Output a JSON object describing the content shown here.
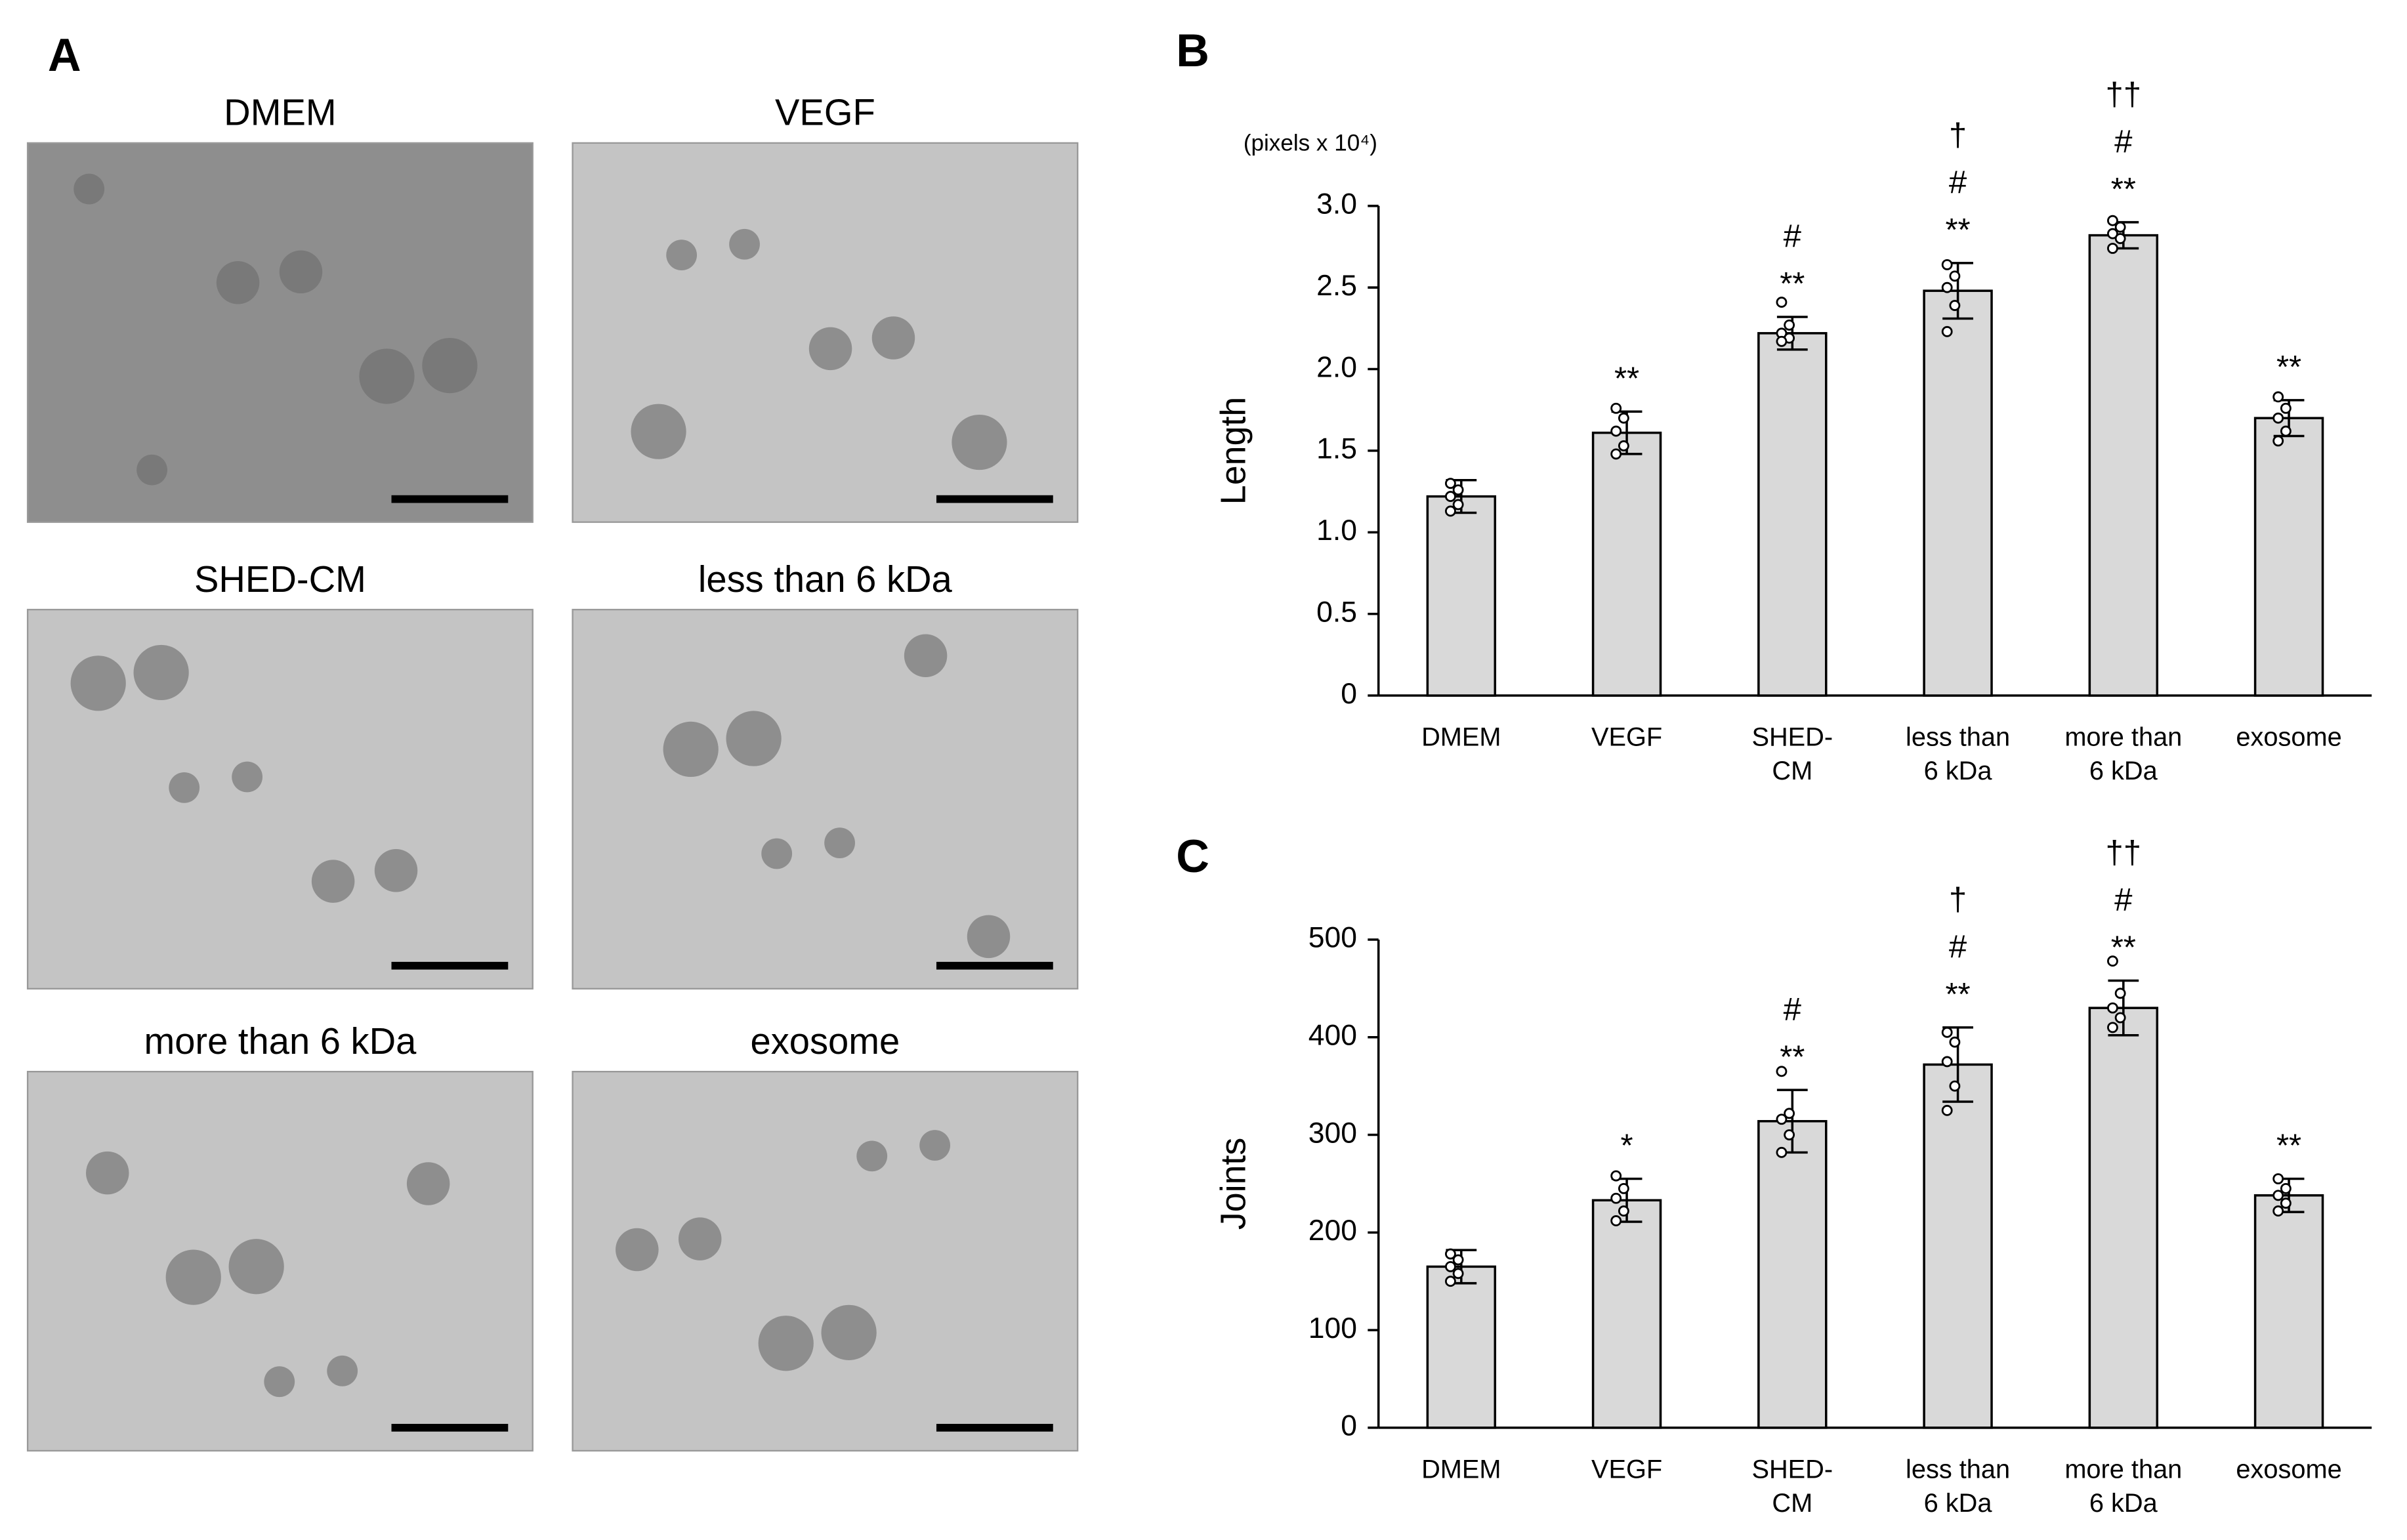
{
  "panel_labels": [
    "A",
    "B",
    "C"
  ],
  "images": [
    {
      "title": "DMEM"
    },
    {
      "title": "VEGF"
    },
    {
      "title": "SHED-CM"
    },
    {
      "title": "less than 6 kDa"
    },
    {
      "title": "more than 6 kDa"
    },
    {
      "title": "exosome"
    }
  ],
  "chart_data": [
    {
      "type": "bar",
      "y_label": "Length",
      "unit_note": "(pixels x 10⁴)",
      "color": "#d9d9d9",
      "categories": [
        "DMEM",
        "VEGF",
        "SHED-\nCM",
        "less than\n6 kDa",
        "more than\n6 kDa",
        "exosome"
      ],
      "values": [
        1.22,
        1.61,
        2.22,
        2.48,
        2.82,
        1.7
      ],
      "errors": [
        0.1,
        0.13,
        0.1,
        0.17,
        0.08,
        0.11
      ],
      "points": [
        [
          1.3,
          1.26,
          1.22,
          1.17,
          1.13
        ],
        [
          1.76,
          1.7,
          1.62,
          1.53,
          1.48
        ],
        [
          2.41,
          2.27,
          2.22,
          2.19,
          2.17
        ],
        [
          2.64,
          2.57,
          2.5,
          2.39,
          2.23
        ],
        [
          2.91,
          2.87,
          2.83,
          2.8,
          2.74
        ],
        [
          1.83,
          1.76,
          1.7,
          1.62,
          1.56
        ]
      ],
      "significance": [
        [],
        [
          "**"
        ],
        [
          "#",
          "**"
        ],
        [
          "†",
          "#",
          "**"
        ],
        [
          "††",
          "#",
          "**"
        ],
        [
          "**"
        ]
      ],
      "ylim": [
        0,
        3
      ],
      "yticks": [
        0,
        0.5,
        {
          "value": 1,
          "label": "1.0"
        },
        1.5,
        {
          "value": 2,
          "label": "2.0"
        },
        2.5,
        {
          "value": 3,
          "label": "3.0"
        }
      ]
    },
    {
      "type": "bar",
      "y_label": "Joints",
      "color": "#d9d9d9",
      "categories": [
        "DMEM",
        "VEGF",
        "SHED-\nCM",
        "less than\n6 kDa",
        "more than\n6 kDa",
        "exosome"
      ],
      "values": [
        165,
        233,
        314,
        372,
        430,
        238
      ],
      "errors": [
        17,
        22,
        32,
        38,
        28,
        17
      ],
      "points": [
        [
          178,
          172,
          165,
          158,
          150
        ],
        [
          258,
          245,
          235,
          222,
          212
        ],
        [
          365,
          322,
          316,
          300,
          282
        ],
        [
          405,
          395,
          375,
          350,
          325
        ],
        [
          478,
          445,
          430,
          420,
          410
        ],
        [
          255,
          245,
          238,
          230,
          222
        ]
      ],
      "significance": [
        [],
        [
          "*"
        ],
        [
          "#",
          "**"
        ],
        [
          "†",
          "#",
          "**"
        ],
        [
          "††",
          "#",
          "**"
        ],
        [
          "**"
        ]
      ],
      "ylim": [
        0,
        500
      ],
      "yticks": [
        0,
        100,
        200,
        300,
        400,
        500
      ]
    }
  ]
}
